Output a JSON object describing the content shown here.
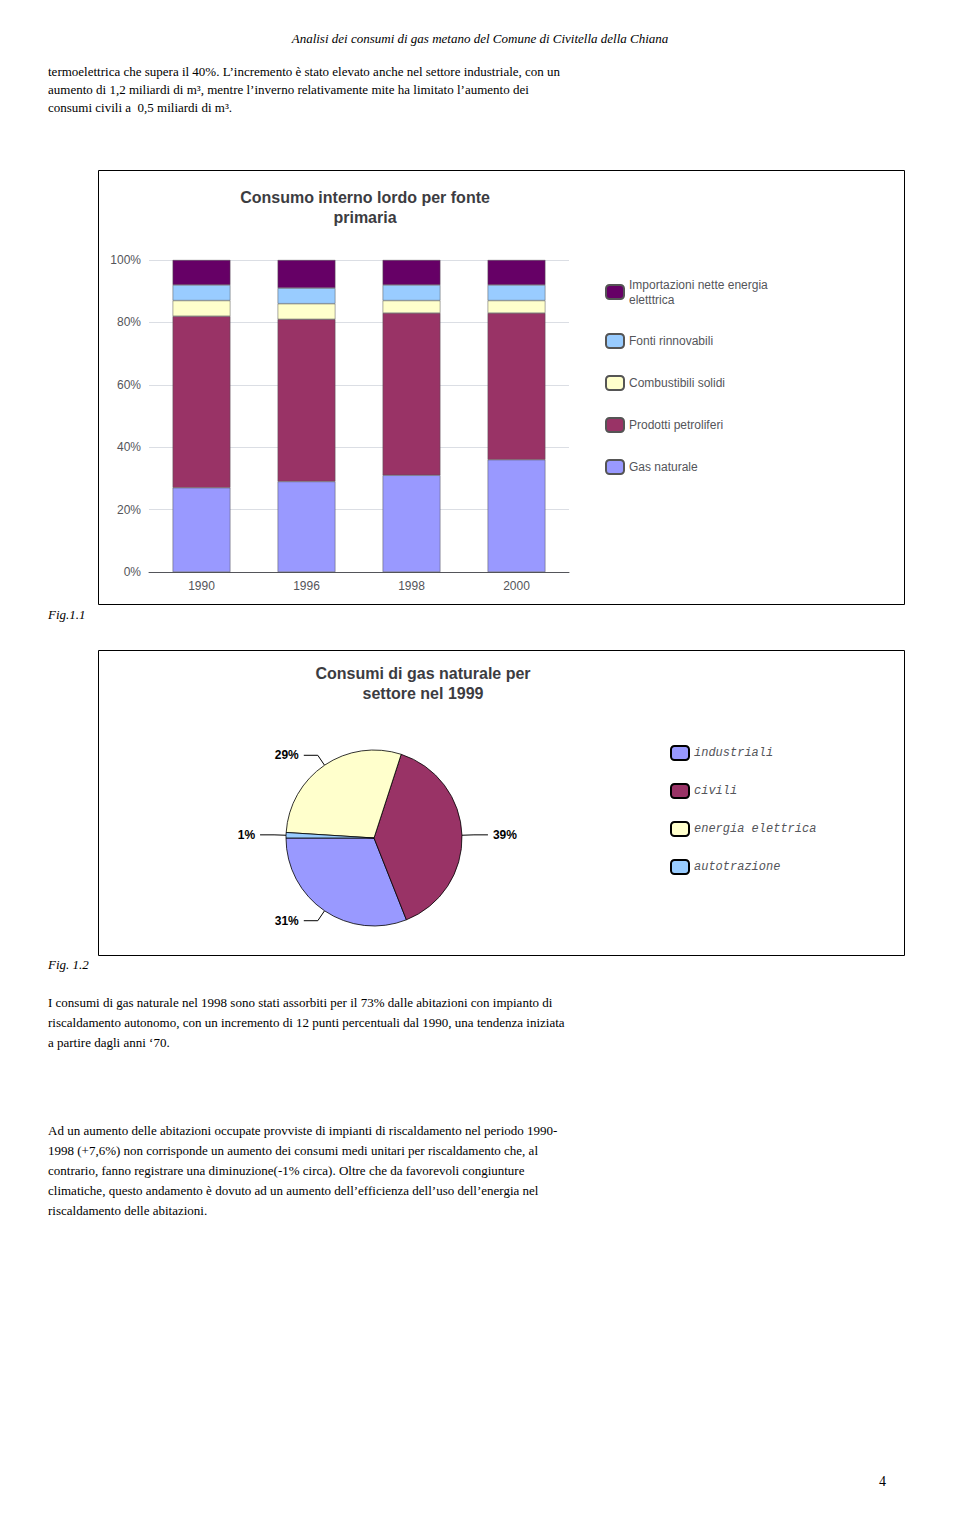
{
  "title": "Analisi dei consumi di gas metano del Comune di Civitella della Chiana",
  "annotations": [
    "termoelettrica che supera il 40%. L’incremento è stato elevato anche nel settore industriale, con un\naumento di 1,2 miliardi di m³, mentre l’inverno relativamente mite ha limitato l’aumento dei\nconsumi civili a  0,5 miliardi di m³.",
    "I consumi di gas naturale nel 1998 sono stati assorbiti per il 73% dalle abitazioni con impianto di\nriscaldamento autonomo, con un incremento di 12 punti percentuali dal 1990, una tendenza iniziata\na partire dagli anni ‘70.",
    "Ad un aumento delle abitazioni occupate provviste di impianti di riscaldamento nel periodo 1990-\n1998 (+7,6%) non corrisponde un aumento dei consumi medi unitari per riscaldamento che, al\ncontrario, fanno registrare una diminuzione(-1% circa). Oltre che da favorevoli congiunture\nclimatiche, questo andamento è dovuto ad un aumento dell’efficienza dell’uso dell’energia nel\nriscaldamento delle abitazioni.",
    "4"
  ],
  "chart_data": [
    {
      "type": "bar",
      "title": "Consumo interno lordo per fonte\nprimaria",
      "subtitle": "Fig.1.1",
      "categories": [
        "1990",
        "1996",
        "1998",
        "2000"
      ],
      "series": [
        {
          "name": "Gas naturale",
          "color": "#9999FF",
          "values": [
            27,
            29,
            31,
            36
          ]
        },
        {
          "name": "Prodotti petroliferi",
          "color": "#993366",
          "values": [
            55,
            52,
            52,
            47
          ]
        },
        {
          "name": "Combustibili solidi",
          "color": "#FFFFCC",
          "values": [
            5,
            5,
            4,
            4
          ]
        },
        {
          "name": "Fonti rinnovabili",
          "color": "#99CCFF",
          "values": [
            5,
            5,
            5,
            5
          ]
        },
        {
          "name": "Importazioni nette energia\neletttrica",
          "color": "#660066",
          "values": [
            8,
            9,
            8,
            8
          ]
        }
      ],
      "stacked": true,
      "ylim": [
        0,
        100
      ],
      "yticks": [
        {
          "value": 0,
          "label": "0%"
        },
        {
          "value": 20,
          "label": "20%"
        },
        {
          "value": 40,
          "label": "40%"
        },
        {
          "value": 60,
          "label": "60%"
        },
        {
          "value": 80,
          "label": "80%"
        },
        {
          "value": 100,
          "label": "100%"
        }
      ],
      "grid": true,
      "legend": "right"
    },
    {
      "type": "pie",
      "title": "Consumi di gas naturale per\nsettore nel 1999",
      "subtitle": "Fig. 1.2",
      "categories": [
        "industriali",
        "civili",
        "energia elettrica",
        "autotrazione"
      ],
      "values": [
        31,
        39,
        29,
        1
      ],
      "value_labels": [
        "31%",
        "39%",
        "29%",
        "1%"
      ],
      "colors": [
        "#9999FF",
        "#993366",
        "#FFFFCC",
        "#99CCFF"
      ],
      "data_labels": true,
      "legend": "right"
    }
  ]
}
